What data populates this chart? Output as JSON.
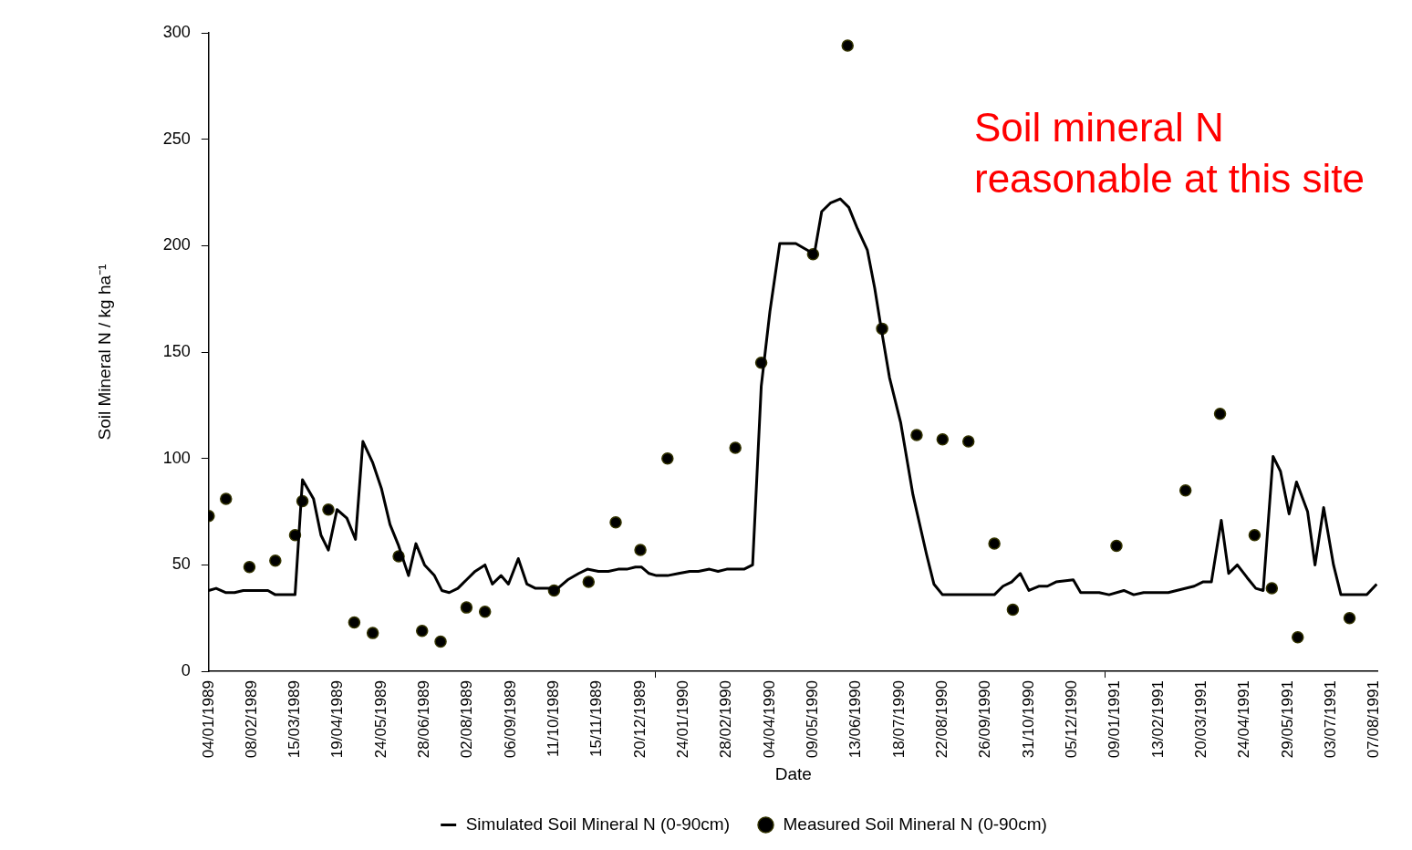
{
  "chart_data": {
    "type": "line",
    "xlabel": "Date",
    "ylabel": "Soil Mineral N / kg ha⁻¹",
    "annotations": [
      "Soil mineral N reasonable at this site"
    ],
    "xlim": [
      "1989-01-04",
      "1991-08-10"
    ],
    "xticks": [
      {
        "value": "1989-01-04",
        "label": "04/01/1989"
      },
      {
        "value": "1989-02-08",
        "label": "08/02/1989"
      },
      {
        "value": "1989-03-15",
        "label": "15/03/1989"
      },
      {
        "value": "1989-04-19",
        "label": "19/04/1989"
      },
      {
        "value": "1989-05-24",
        "label": "24/05/1989"
      },
      {
        "value": "1989-06-28",
        "label": "28/06/1989"
      },
      {
        "value": "1989-08-02",
        "label": "02/08/1989"
      },
      {
        "value": "1989-09-06",
        "label": "06/09/1989"
      },
      {
        "value": "1989-10-11",
        "label": "11/10/1989"
      },
      {
        "value": "1989-11-15",
        "label": "15/11/1989"
      },
      {
        "value": "1989-12-20",
        "label": "20/12/1989"
      },
      {
        "value": "1990-01-01",
        "label": null
      },
      {
        "value": "1990-01-24",
        "label": "24/01/1990"
      },
      {
        "value": "1990-02-28",
        "label": "28/02/1990"
      },
      {
        "value": "1990-04-04",
        "label": "04/04/1990"
      },
      {
        "value": "1990-05-09",
        "label": "09/05/1990"
      },
      {
        "value": "1990-06-13",
        "label": "13/06/1990"
      },
      {
        "value": "1990-07-18",
        "label": "18/07/1990"
      },
      {
        "value": "1990-08-22",
        "label": "22/08/1990"
      },
      {
        "value": "1990-09-26",
        "label": "26/09/1990"
      },
      {
        "value": "1990-10-31",
        "label": "31/10/1990"
      },
      {
        "value": "1990-12-05",
        "label": "05/12/1990"
      },
      {
        "value": "1991-01-01",
        "label": null
      },
      {
        "value": "1991-01-09",
        "label": "09/01/1991"
      },
      {
        "value": "1991-02-13",
        "label": "13/02/1991"
      },
      {
        "value": "1991-03-20",
        "label": "20/03/1991"
      },
      {
        "value": "1991-04-24",
        "label": "24/04/1991"
      },
      {
        "value": "1991-05-29",
        "label": "29/05/1991"
      },
      {
        "value": "1991-07-03",
        "label": "03/07/1991"
      },
      {
        "value": "1991-08-07",
        "label": "07/08/1991"
      }
    ],
    "ylim": [
      0,
      300
    ],
    "yticks": [
      0,
      50,
      100,
      150,
      200,
      250,
      300
    ],
    "grid": false,
    "legend": "bottom",
    "series": [
      {
        "name": "Simulated Soil Mineral N (0-90cm)",
        "type": "line",
        "color": "#000000",
        "marker": "none",
        "line_style": "solid",
        "x": [
          "1989-01-04",
          "1989-01-10",
          "1989-01-18",
          "1989-01-25",
          "1989-02-01",
          "1989-02-21",
          "1989-02-27",
          "1989-03-15",
          "1989-03-21",
          "1989-03-30",
          "1989-04-05",
          "1989-04-11",
          "1989-04-18",
          "1989-04-26",
          "1989-05-03",
          "1989-05-09",
          "1989-05-17",
          "1989-05-24",
          "1989-05-31",
          "1989-06-07",
          "1989-06-15",
          "1989-06-21",
          "1989-06-28",
          "1989-07-06",
          "1989-07-12",
          "1989-07-18",
          "1989-07-25",
          "1989-08-01",
          "1989-08-08",
          "1989-08-16",
          "1989-08-22",
          "1989-08-29",
          "1989-09-04",
          "1989-09-12",
          "1989-09-19",
          "1989-09-26",
          "1989-10-14",
          "1989-10-22",
          "1989-10-31",
          "1989-11-07",
          "1989-11-16",
          "1989-11-24",
          "1989-12-02",
          "1989-12-09",
          "1989-12-16",
          "1989-12-21",
          "1989-12-27",
          "1990-01-02",
          "1990-01-11",
          "1990-01-20",
          "1990-01-29",
          "1990-02-05",
          "1990-02-14",
          "1990-02-21",
          "1990-02-28",
          "1990-03-14",
          "1990-03-21",
          "1990-03-28",
          "1990-04-04",
          "1990-04-12",
          "1990-04-25",
          "1990-05-04",
          "1990-05-10",
          "1990-05-16",
          "1990-05-23",
          "1990-05-31",
          "1990-06-07",
          "1990-06-14",
          "1990-06-22",
          "1990-06-28",
          "1990-07-03",
          "1990-07-10",
          "1990-07-19",
          "1990-07-29",
          "1990-08-09",
          "1990-08-15",
          "1990-08-22",
          "1990-10-03",
          "1990-10-10",
          "1990-10-17",
          "1990-10-24",
          "1990-10-31",
          "1990-11-08",
          "1990-11-15",
          "1990-11-22",
          "1990-12-06",
          "1990-12-12",
          "1990-12-27",
          "1991-01-04",
          "1991-01-16",
          "1991-01-24",
          "1991-02-01",
          "1991-02-21",
          "1991-03-14",
          "1991-03-21",
          "1991-03-28",
          "1991-04-05",
          "1991-04-11",
          "1991-04-18",
          "1991-04-26",
          "1991-05-03",
          "1991-05-09",
          "1991-05-17",
          "1991-05-23",
          "1991-05-30",
          "1991-06-05",
          "1991-06-14",
          "1991-06-20",
          "1991-06-27",
          "1991-07-05",
          "1991-07-11",
          "1991-08-01",
          "1991-08-09"
        ],
        "values": [
          38,
          39,
          37,
          37,
          38,
          38,
          36,
          36,
          90,
          81,
          64,
          57,
          76,
          72,
          62,
          108,
          98,
          86,
          69,
          59,
          45,
          60,
          50,
          45,
          38,
          37,
          39,
          43,
          47,
          50,
          41,
          45,
          41,
          53,
          41,
          39,
          39,
          43,
          46,
          48,
          47,
          47,
          48,
          48,
          49,
          49,
          46,
          45,
          45,
          46,
          47,
          47,
          48,
          47,
          48,
          48,
          50,
          134,
          169,
          201,
          201,
          198,
          196,
          216,
          220,
          222,
          218,
          208,
          198,
          180,
          162,
          138,
          117,
          83,
          55,
          41,
          36,
          36,
          40,
          42,
          46,
          38,
          40,
          40,
          42,
          43,
          37,
          37,
          36,
          38,
          36,
          37,
          37,
          40,
          42,
          42,
          71,
          46,
          50,
          44,
          39,
          38,
          101,
          94,
          74,
          89,
          75,
          50,
          77,
          50,
          36,
          36,
          41
        ]
      },
      {
        "name": "Measured Soil Mineral N (0-90cm)",
        "type": "scatter",
        "color": "#000000",
        "marker": "circle",
        "x": [
          "1989-01-04",
          "1989-01-18",
          "1989-02-06",
          "1989-02-27",
          "1989-03-15",
          "1989-03-21",
          "1989-04-11",
          "1989-05-02",
          "1989-05-17",
          "1989-06-07",
          "1989-06-26",
          "1989-07-11",
          "1989-08-01",
          "1989-08-16",
          "1989-10-11",
          "1989-11-08",
          "1989-11-30",
          "1989-12-20",
          "1990-01-11",
          "1990-03-07",
          "1990-03-28",
          "1990-05-09",
          "1990-06-06",
          "1990-07-04",
          "1990-08-01",
          "1990-08-22",
          "1990-09-12",
          "1990-10-03",
          "1990-10-18",
          "1991-01-10",
          "1991-03-07",
          "1991-04-04",
          "1991-05-02",
          "1991-05-16",
          "1991-06-06",
          "1991-07-18"
        ],
        "values": [
          73,
          81,
          49,
          52,
          64,
          80,
          76,
          23,
          18,
          54,
          19,
          14,
          30,
          28,
          38,
          42,
          70,
          57,
          100,
          105,
          145,
          196,
          294,
          161,
          111,
          109,
          108,
          60,
          29,
          59,
          85,
          121,
          64,
          39,
          16,
          25
        ]
      }
    ]
  }
}
